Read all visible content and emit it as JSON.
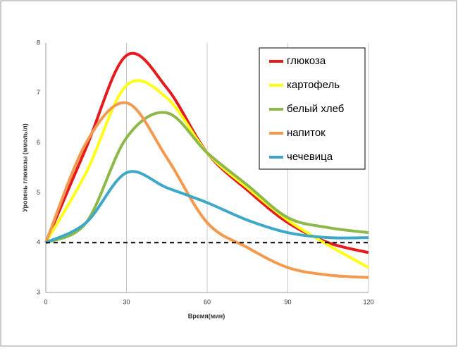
{
  "chart_data": {
    "type": "line",
    "x_label": "Время(мин)",
    "y_label": "Уровень глюкозы (ммоль/л)",
    "x": [
      0,
      15,
      30,
      45,
      60,
      75,
      90,
      105,
      120
    ],
    "series": [
      {
        "name": "глюкоза",
        "color": "#e41a1c",
        "values": [
          4,
          5.9,
          7.75,
          7.1,
          5.8,
          5.05,
          4.4,
          4.0,
          3.8
        ]
      },
      {
        "name": "картофель",
        "color": "#ffff1a",
        "values": [
          4,
          5.4,
          7.15,
          6.9,
          5.8,
          5.1,
          4.45,
          3.95,
          3.5
        ]
      },
      {
        "name": "белый хлеб",
        "color": "#8db84a",
        "values": [
          4,
          4.4,
          6.1,
          6.6,
          5.8,
          5.15,
          4.5,
          4.3,
          4.2
        ]
      },
      {
        "name": "напиток",
        "color": "#f39a4f",
        "values": [
          4,
          6.0,
          6.8,
          5.7,
          4.4,
          3.9,
          3.5,
          3.35,
          3.3
        ]
      },
      {
        "name": "чечевица",
        "color": "#3ea8c8",
        "values": [
          4,
          4.4,
          5.4,
          5.1,
          4.8,
          4.45,
          4.2,
          4.1,
          4.1
        ]
      }
    ],
    "hline": 4,
    "xlim": [
      0,
      120
    ],
    "xticks": [
      0,
      30,
      60,
      90,
      120
    ],
    "ylim": [
      3,
      8
    ],
    "yticks": [
      3,
      4,
      5,
      6,
      7,
      8
    ],
    "grid": "x"
  }
}
